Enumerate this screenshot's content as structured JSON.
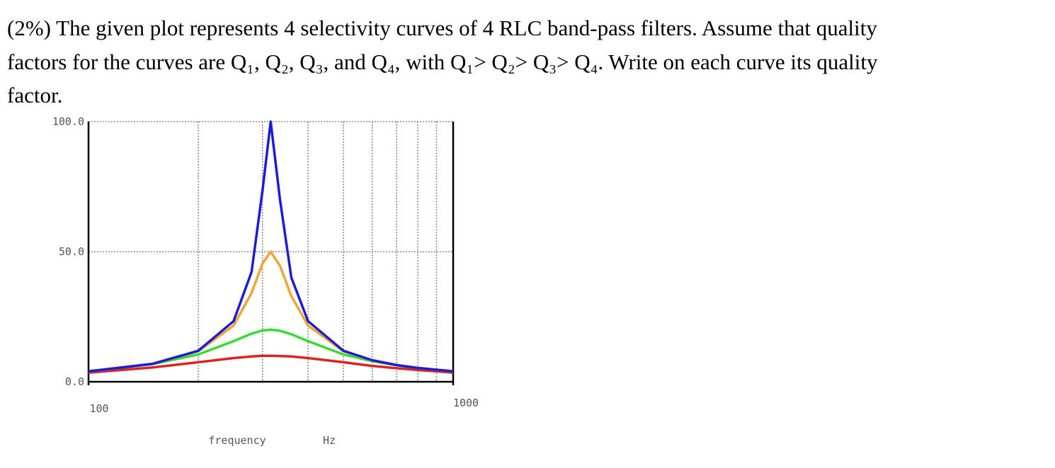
{
  "question": [
    "(2%) The given plot represents 4 selectivity curves of 4 RLC band-pass filters. Assume that quality",
    "factors for the curves are Q₁, Q₂, Q₃, and Q₄, with  Q₁> Q₂> Q₃> Q₄. Write on each curve its quality",
    "factor."
  ],
  "chart_data": {
    "type": "line",
    "x_label": "frequency",
    "x_unit": "Hz",
    "xscale": "log",
    "x": [
      100,
      150,
      200,
      250,
      280,
      300,
      316,
      335,
      360,
      400,
      500,
      600,
      700,
      800,
      1000
    ],
    "series": [
      {
        "color": "#1c1cd8",
        "values": [
          4.0,
          6.9,
          11.9,
          23.3,
          42.2,
          73.4,
          100,
          70.1,
          40.0,
          23.3,
          11.9,
          8.3,
          6.4,
          5.3,
          4.0
        ]
      },
      {
        "color": "#f0a535",
        "values": [
          4.0,
          6.9,
          11.7,
          21.6,
          34.1,
          45.4,
          50,
          44.6,
          32.9,
          21.6,
          11.7,
          8.2,
          6.4,
          5.3,
          4.0
        ]
      },
      {
        "color": "#35dc35",
        "values": [
          4.0,
          6.8,
          10.5,
          15.6,
          18.5,
          19.7,
          20,
          19.6,
          18.3,
          15.6,
          10.5,
          7.9,
          6.3,
          5.3,
          4.0
        ]
      },
      {
        "color": "#dc2222",
        "values": [
          3.5,
          5.5,
          7.5,
          9.1,
          9.7,
          10.0,
          10,
          9.9,
          9.7,
          9.1,
          7.5,
          6.1,
          5.2,
          4.5,
          3.5
        ]
      }
    ],
    "xlim": [
      100,
      1000
    ],
    "xticks": [
      100,
      1000
    ],
    "x_minor_grid": [
      200,
      300,
      400,
      500,
      600,
      700,
      800,
      900
    ],
    "ylim": [
      0,
      100
    ],
    "yticks": [
      {
        "value": 0,
        "label": "0.0"
      },
      {
        "value": 50,
        "label": "50.0"
      },
      {
        "value": 100,
        "label": "100.0"
      }
    ],
    "grid": true
  }
}
